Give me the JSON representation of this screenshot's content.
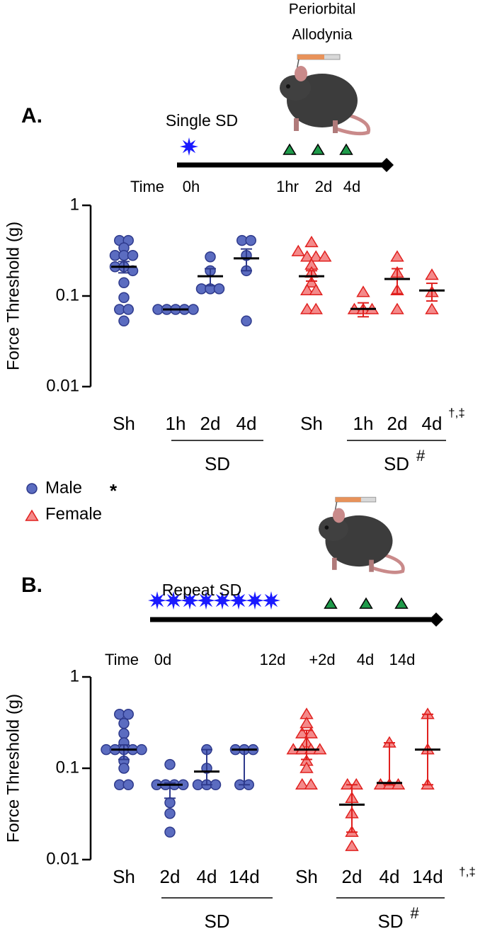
{
  "chart_data": [
    {
      "type": "scatter",
      "panel_label": "A.",
      "timeline": {
        "title": "Single SD",
        "axis_label": "Time",
        "ticks": [
          "0h",
          "1hr",
          "2d",
          "4d"
        ],
        "test_label": [
          "Periorbital",
          "Allodynia"
        ]
      },
      "y_label": "Force Threshold (g)",
      "log_y": true,
      "ylim": [
        0.01,
        1
      ],
      "yticks": [
        0.01,
        0.1,
        1
      ],
      "categories": [
        "Sh",
        "1h",
        "2d",
        "4d",
        "Sh",
        "1h",
        "2d",
        "4d"
      ],
      "groups": [
        {
          "label": "SD"
        },
        {
          "label": "SD",
          "mark": "#"
        }
      ],
      "significance": "†,‡",
      "series": [
        {
          "name": "Male",
          "note": "*",
          "marker": "circle",
          "color": "#5b6cc0",
          "edge": "#2e3a8c",
          "values": [
            [
              0.41,
              0.41,
              0.34,
              0.28,
              0.28,
              0.28,
              0.21,
              0.21,
              0.19,
              0.14,
              0.096,
              0.071,
              0.071,
              0.053
            ],
            [
              0.071,
              0.071,
              0.071,
              0.071,
              0.071
            ],
            [
              0.27,
              0.19,
              0.12,
              0.12,
              0.12
            ],
            [
              0.41,
              0.41,
              0.28,
              0.19,
              0.053
            ],
            null,
            null,
            null,
            null
          ],
          "center": [
            0.21,
            0.071,
            0.165,
            0.26,
            null,
            null,
            null,
            null
          ],
          "error_low": [
            0.18,
            null,
            0.13,
            0.19,
            null,
            null,
            null,
            null
          ],
          "error_high": [
            0.24,
            null,
            0.2,
            0.33,
            null,
            null,
            null,
            null
          ]
        },
        {
          "name": "Female",
          "marker": "triangle",
          "color": "#f48a8a",
          "edge": "#e0201e",
          "values": [
            null,
            null,
            null,
            null,
            [
              0.39,
              0.31,
              0.27,
              0.27,
              0.27,
              0.22,
              0.18,
              0.14,
              0.115,
              0.115,
              0.071,
              0.071
            ],
            [
              0.11,
              0.071,
              0.071,
              0.071
            ],
            [
              0.27,
              0.18,
              0.115,
              0.071
            ],
            [
              0.17,
              0.11,
              0.071
            ]
          ],
          "center": [
            null,
            null,
            null,
            null,
            0.165,
            0.072,
            0.154,
            0.115
          ],
          "error_low": [
            null,
            null,
            null,
            null,
            0.146,
            0.059,
            0.106,
            0.088
          ],
          "error_high": [
            null,
            null,
            null,
            null,
            0.19,
            0.084,
            0.2,
            0.138
          ]
        }
      ]
    },
    {
      "type": "scatter",
      "panel_label": "B.",
      "timeline": {
        "title": "Repeat SD",
        "axis_label": "Time",
        "ticks": [
          "0d",
          "12d",
          "+2d",
          "4d",
          "14d"
        ]
      },
      "y_label": "Force Threshold (g)",
      "log_y": true,
      "ylim": [
        0.01,
        1
      ],
      "yticks": [
        0.01,
        0.1,
        1
      ],
      "categories": [
        "Sh",
        "2d",
        "4d",
        "14d",
        "Sh",
        "2d",
        "4d",
        "14d"
      ],
      "groups": [
        {
          "label": "SD"
        },
        {
          "label": "SD",
          "mark": "#"
        }
      ],
      "significance": "†,‡",
      "series": [
        {
          "marker": "circle",
          "color": "#5b6cc0",
          "edge": "#2e3a8c",
          "values": [
            [
              0.39,
              0.39,
              0.31,
              0.24,
              0.19,
              0.16,
              0.16,
              0.16,
              0.16,
              0.16,
              0.12,
              0.1,
              0.066,
              0.066
            ],
            [
              0.11,
              0.066,
              0.066,
              0.066,
              0.066,
              0.042,
              0.032,
              0.02
            ],
            [
              0.16,
              0.1,
              0.066,
              0.066,
              0.066
            ],
            [
              0.16,
              0.16,
              0.16,
              0.066,
              0.066
            ],
            null,
            null,
            null,
            null
          ],
          "center": [
            0.16,
            0.066,
            0.092,
            0.16,
            null,
            null,
            null,
            null
          ],
          "error_low": [
            0.125,
            0.047,
            0.066,
            0.066,
            null,
            null,
            null,
            null
          ],
          "error_high": [
            0.18,
            0.069,
            0.16,
            0.16,
            null,
            null,
            null,
            null
          ]
        },
        {
          "marker": "triangle",
          "color": "#f48a8a",
          "edge": "#e0201e",
          "values": [
            null,
            null,
            null,
            null,
            [
              0.39,
              0.31,
              0.24,
              0.24,
              0.19,
              0.16,
              0.16,
              0.16,
              0.16,
              0.12,
              0.1,
              0.066,
              0.066
            ],
            [
              0.066,
              0.066,
              0.047,
              0.032,
              0.02,
              0.014
            ],
            [
              0.19,
              0.066,
              0.066,
              0.066
            ],
            [
              0.39,
              0.16,
              0.066
            ]
          ],
          "center": [
            null,
            null,
            null,
            null,
            0.16,
            0.04,
            0.069,
            0.16
          ],
          "error_low": [
            null,
            null,
            null,
            null,
            0.125,
            0.02,
            0.066,
            0.066
          ],
          "error_high": [
            null,
            null,
            null,
            null,
            0.26,
            0.066,
            0.19,
            0.39
          ]
        }
      ]
    }
  ]
}
